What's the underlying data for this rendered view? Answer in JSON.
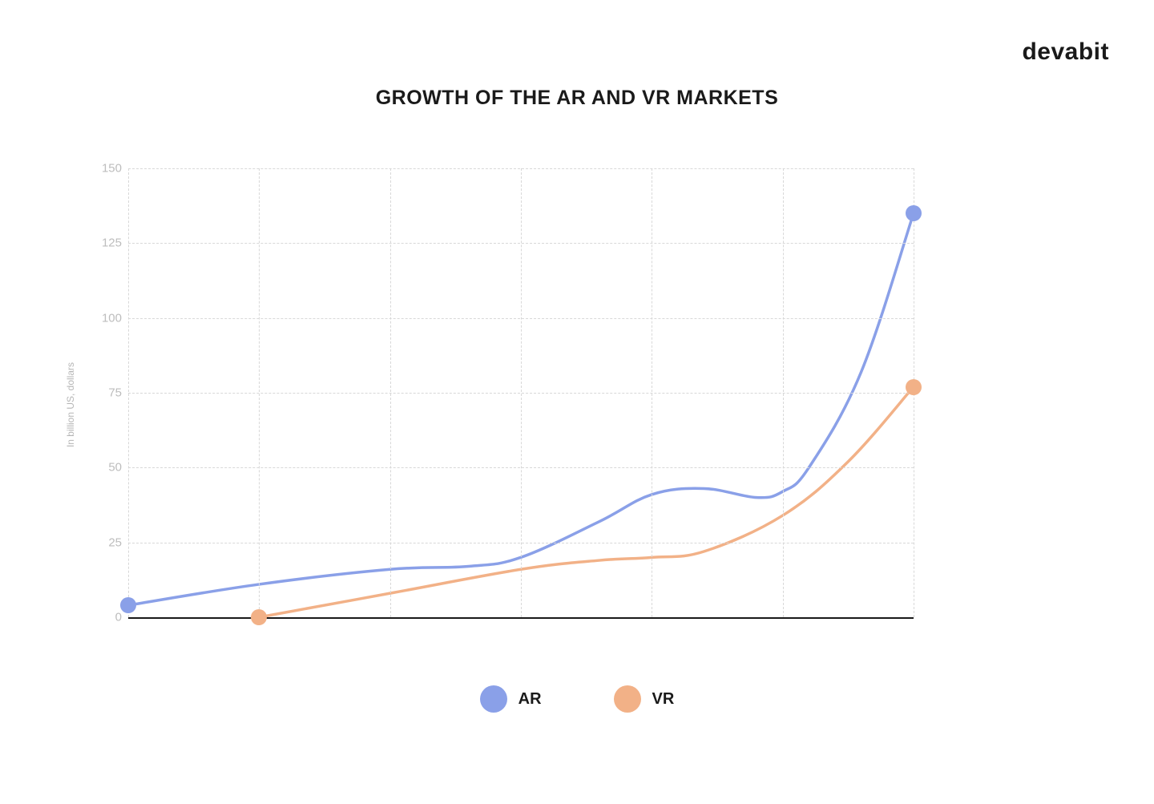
{
  "brand": "devabit",
  "chart": {
    "type": "line",
    "title": "GROWTH OF THE AR AND VR MARKETS",
    "title_fontsize": 25,
    "title_fontweight": 700,
    "title_color": "#1a1a1a",
    "background_color": "#ffffff",
    "grid_color": "#d8d8d8",
    "grid_dash": "4 4",
    "axis_line_color": "#1a1a1a",
    "tick_label_color": "#bdbdbd",
    "tick_label_fontsize": 15,
    "y_axis": {
      "label": "In billion US, dollars",
      "label_fontsize": 12,
      "label_color": "#b6b6b6",
      "min": 0,
      "max": 150,
      "tick_step": 25,
      "ticks": [
        0,
        25,
        50,
        75,
        100,
        125,
        150
      ]
    },
    "x_axis": {
      "min": 0,
      "max": 6,
      "grid_positions": [
        0,
        1,
        2,
        3,
        4,
        5,
        6
      ]
    },
    "line_width": 3.5,
    "end_marker_radius": 10,
    "start_marker_radius": 10,
    "series": [
      {
        "name": "AR",
        "color": "#8aa0e8",
        "points": [
          {
            "x": 0.0,
            "y": 4
          },
          {
            "x": 1.0,
            "y": 11
          },
          {
            "x": 2.0,
            "y": 16
          },
          {
            "x": 2.6,
            "y": 17
          },
          {
            "x": 3.0,
            "y": 20
          },
          {
            "x": 3.6,
            "y": 32
          },
          {
            "x": 4.0,
            "y": 41
          },
          {
            "x": 4.4,
            "y": 43
          },
          {
            "x": 4.8,
            "y": 40
          },
          {
            "x": 5.0,
            "y": 42
          },
          {
            "x": 5.2,
            "y": 50
          },
          {
            "x": 5.6,
            "y": 82
          },
          {
            "x": 6.0,
            "y": 135
          }
        ],
        "start_marker": {
          "x": 0.0,
          "y": 4
        },
        "end_marker": {
          "x": 6.0,
          "y": 135
        }
      },
      {
        "name": "VR",
        "color": "#f2b187",
        "points": [
          {
            "x": 1.0,
            "y": 0
          },
          {
            "x": 2.0,
            "y": 8
          },
          {
            "x": 3.0,
            "y": 16
          },
          {
            "x": 3.6,
            "y": 19
          },
          {
            "x": 4.0,
            "y": 20
          },
          {
            "x": 4.4,
            "y": 22
          },
          {
            "x": 5.0,
            "y": 34
          },
          {
            "x": 5.5,
            "y": 52
          },
          {
            "x": 6.0,
            "y": 77
          }
        ],
        "start_marker": {
          "x": 1.0,
          "y": 0
        },
        "end_marker": {
          "x": 6.0,
          "y": 77
        }
      }
    ],
    "legend": {
      "dot_radius": 17,
      "label_fontsize": 20,
      "label_fontweight": 700,
      "label_color": "#1a1a1a",
      "items": [
        {
          "label": "AR",
          "color": "#8aa0e8"
        },
        {
          "label": "VR",
          "color": "#f2b187"
        }
      ]
    }
  }
}
